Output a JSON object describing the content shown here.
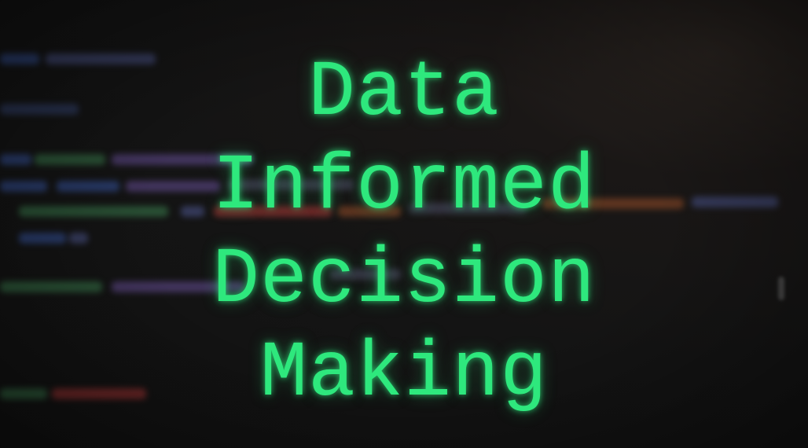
{
  "headline": {
    "lines": [
      "Data",
      "Informed",
      "Decision",
      "Making"
    ]
  },
  "colors": {
    "background": "#141414",
    "headline_text": "#2ee87d",
    "code_blue": "#2b3f73",
    "code_green": "#2d5a3a",
    "code_purple": "#4a3a6a",
    "code_red": "#7a2a2a",
    "code_orange": "#6a3a22"
  },
  "background_description_icon": "blurred-code-editor-icon"
}
